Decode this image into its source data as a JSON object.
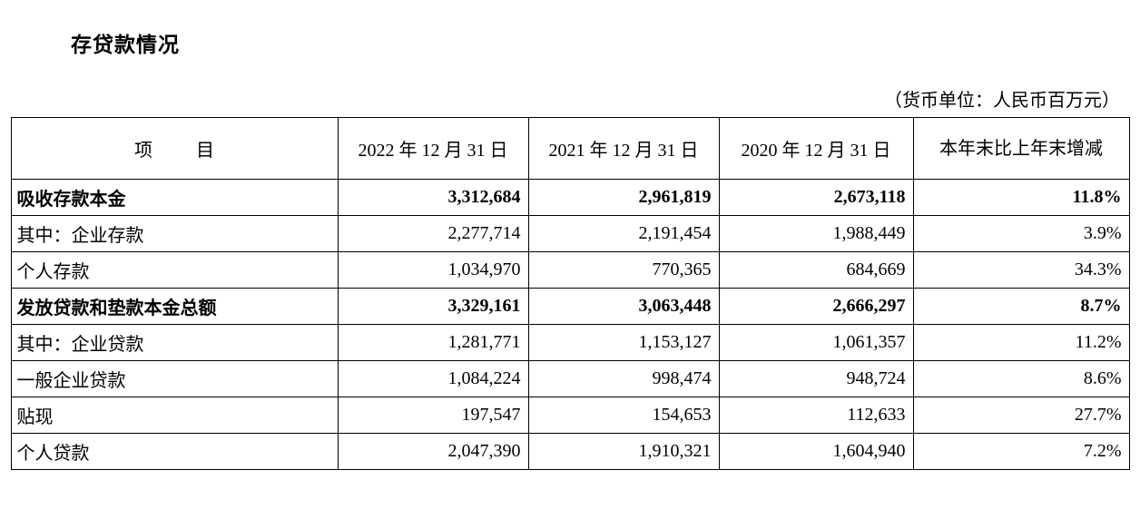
{
  "title": "存贷款情况",
  "unit_note": "（货币单位：人民币百万元）",
  "table": {
    "headers": {
      "item": "项　目",
      "y2022": "2022 年 12 月 31 日",
      "y2021": "2021 年 12 月 31 日",
      "y2020": "2020 年 12 月 31 日",
      "change": "本年末比上年末增减"
    },
    "rows": [
      {
        "label": "吸收存款本金",
        "indent": 0,
        "bold": true,
        "y2022": "3,312,684",
        "y2021": "2,961,819",
        "y2020": "2,673,118",
        "change": "11.8%"
      },
      {
        "label": "其中：企业存款",
        "indent": 0,
        "bold": false,
        "y2022": "2,277,714",
        "y2021": "2,191,454",
        "y2020": "1,988,449",
        "change": "3.9%"
      },
      {
        "label": "个人存款",
        "indent": 1,
        "bold": false,
        "y2022": "1,034,970",
        "y2021": "770,365",
        "y2020": "684,669",
        "change": "34.3%"
      },
      {
        "label": "发放贷款和垫款本金总额",
        "indent": 0,
        "bold": true,
        "y2022": "3,329,161",
        "y2021": "3,063,448",
        "y2020": "2,666,297",
        "change": "8.7%"
      },
      {
        "label": "其中：企业贷款",
        "indent": 0,
        "bold": false,
        "y2022": "1,281,771",
        "y2021": "1,153,127",
        "y2020": "1,061,357",
        "change": "11.2%"
      },
      {
        "label": "一般企业贷款",
        "indent": 2,
        "bold": false,
        "y2022": "1,084,224",
        "y2021": "998,474",
        "y2020": "948,724",
        "change": "8.6%"
      },
      {
        "label": "贴现",
        "indent": 2,
        "bold": false,
        "y2022": "197,547",
        "y2021": "154,653",
        "y2020": "112,633",
        "change": "27.7%"
      },
      {
        "label": "个人贷款",
        "indent": 1,
        "bold": false,
        "y2022": "2,047,390",
        "y2021": "1,910,321",
        "y2020": "1,604,940",
        "change": "7.2%"
      }
    ],
    "colors": {
      "border": "#000000",
      "text": "#000000",
      "background": "#ffffff"
    },
    "font": {
      "family": "SimSun",
      "size_body": 20,
      "size_title": 23
    }
  }
}
